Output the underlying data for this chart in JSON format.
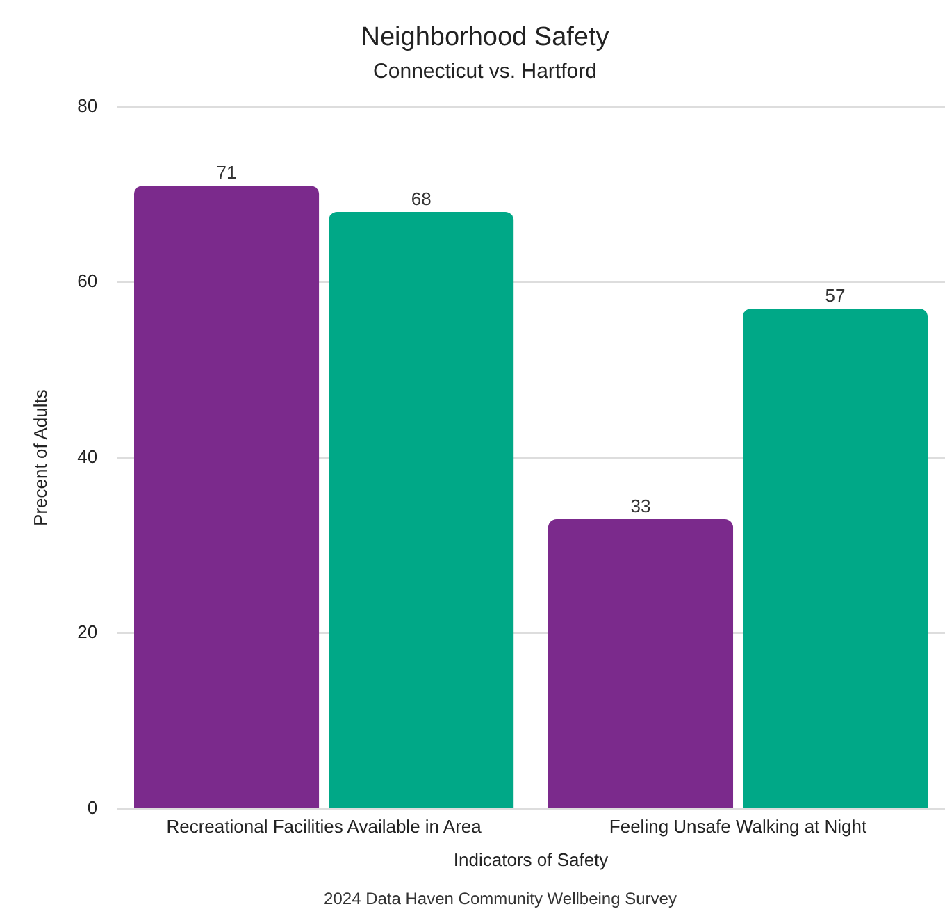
{
  "chart_data": {
    "type": "bar",
    "title": "Neighborhood Safety",
    "subtitle": "Connecticut vs. Hartford",
    "xlabel": "Indicators of Safety",
    "ylabel": "Precent of Adults",
    "categories": [
      "Recreational Facilities Available in Area",
      "Feeling Unsafe Walking at Night"
    ],
    "series": [
      {
        "color": "#7b2a8c",
        "values": [
          71,
          33
        ]
      },
      {
        "color": "#00a887",
        "values": [
          68,
          57
        ]
      }
    ],
    "ylim": [
      0,
      80
    ],
    "yticks": [
      0,
      20,
      40,
      60,
      80
    ],
    "grid": "y",
    "legend": false,
    "data_labels": true,
    "annotations": [
      "2024 Data Haven Community Wellbeing Survey"
    ]
  }
}
